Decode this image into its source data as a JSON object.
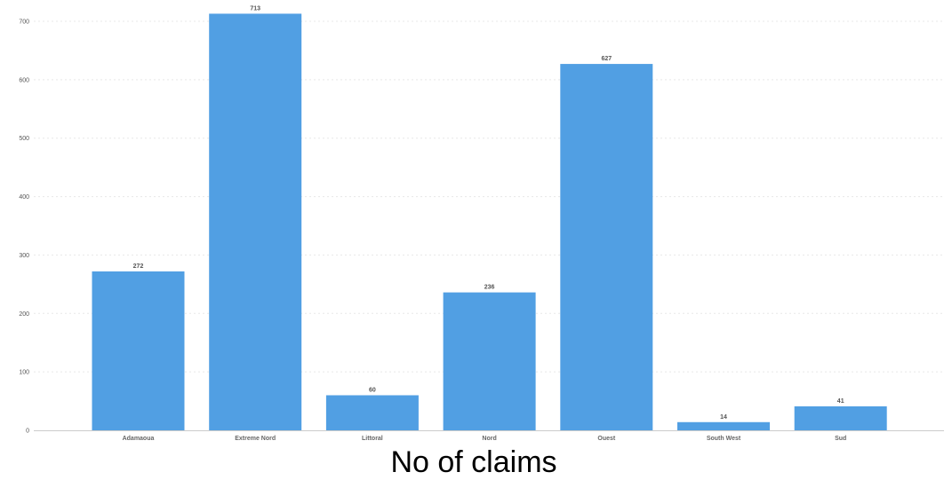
{
  "chart_data": {
    "type": "bar",
    "categories": [
      "Adamaoua",
      "Extreme Nord",
      "Littoral",
      "Nord",
      "Ouest",
      "South West",
      "Sud"
    ],
    "values": [
      272,
      713,
      60,
      236,
      627,
      14,
      41
    ],
    "y_ticks": [
      0,
      100,
      200,
      300,
      400,
      500,
      600,
      700
    ],
    "ylim": [
      0,
      730
    ],
    "grid": true,
    "bar_color": "#519fe3",
    "caption": "No of claims"
  }
}
